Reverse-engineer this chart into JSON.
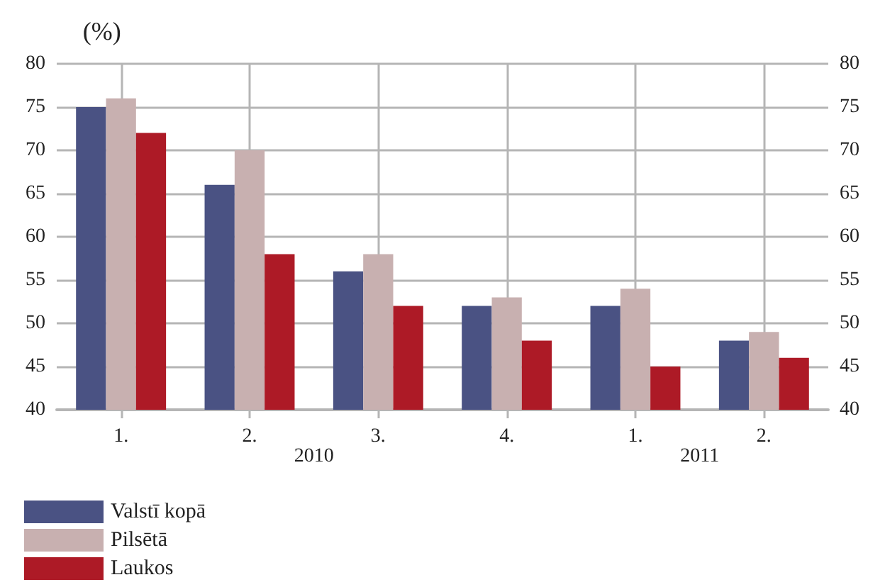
{
  "chart_data": {
    "type": "bar",
    "ylabel": "(%)",
    "categories": [
      "1.",
      "2.",
      "3.",
      "4.",
      "1.",
      "2."
    ],
    "series": [
      {
        "name": "Valstī kopā",
        "color": "#4a5283",
        "values": [
          75,
          66,
          56,
          52,
          52,
          48
        ]
      },
      {
        "name": "Pilsētā",
        "color": "#c8b0b0",
        "values": [
          76,
          70,
          58,
          53,
          54,
          49
        ]
      },
      {
        "name": "Laukos",
        "color": "#ad1a26",
        "values": [
          72,
          58,
          52,
          48,
          45,
          46
        ]
      }
    ],
    "annotations": [
      "2010",
      "2011"
    ],
    "ylim": [
      40,
      80
    ],
    "yticks": [
      40,
      45,
      50,
      55,
      60,
      65,
      70,
      75,
      80
    ],
    "y2lim": [
      40,
      80
    ],
    "y2ticks": [
      40,
      45,
      50,
      55,
      60,
      65,
      70,
      75,
      80
    ],
    "grid": true,
    "legend": "bottom left"
  }
}
